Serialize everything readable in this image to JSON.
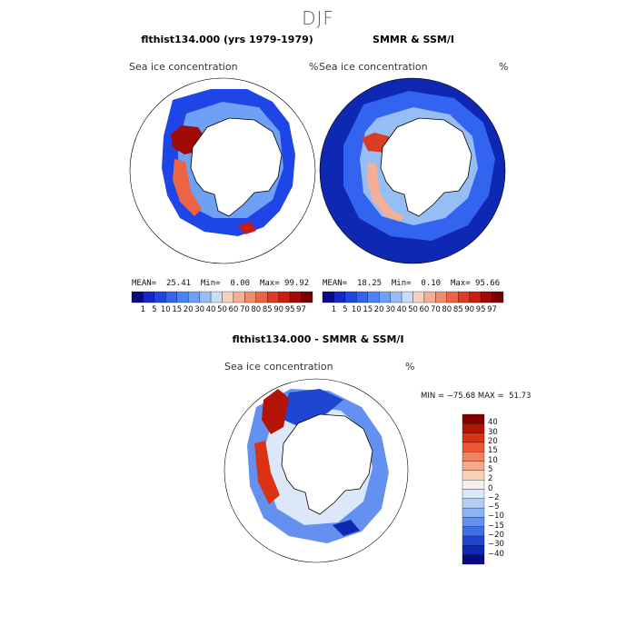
{
  "season": "DJF",
  "panels": {
    "left": {
      "title": "flthist134.000 (yrs 1979-1979)",
      "variable": "Sea ice concentration",
      "unit": "%",
      "mean_label": "MEAN=",
      "mean": "25.41",
      "min_label": "Min=",
      "min": "0.00",
      "max_label": "Max=",
      "max": "99.92"
    },
    "right": {
      "title": "SMMR & SSM/I",
      "variable": "Sea ice concentration",
      "unit": "%",
      "mean_label": "MEAN=",
      "mean": "18.25",
      "min_label": "Min=",
      "min": "0.10",
      "max_label": "Max=",
      "max": "95.66"
    },
    "diff": {
      "title": "flthist134.000 - SMMR & SSM/I",
      "variable": "Sea ice concentration",
      "unit": "%",
      "minmax_text": "MIN = −75.68 MAX =  51.73"
    }
  },
  "abs_colorbar": {
    "ticks": [
      "1",
      "5",
      "10",
      "15",
      "20",
      "30",
      "40",
      "50",
      "60",
      "70",
      "80",
      "85",
      "90",
      "95",
      "97"
    ],
    "colors": [
      "#0a0a82",
      "#1428c8",
      "#1e46e6",
      "#3264f0",
      "#4b82f5",
      "#6ea0f5",
      "#96bef5",
      "#c8dcf8",
      "#f5d2be",
      "#f5af96",
      "#f08c6e",
      "#eb6446",
      "#dc3c23",
      "#c81e0f",
      "#a00a05",
      "#780000"
    ]
  },
  "diff_colorbar": {
    "labels": [
      "40",
      "30",
      "20",
      "15",
      "10",
      "5",
      "2",
      "0",
      "−2",
      "−5",
      "−10",
      "−15",
      "−20",
      "−30",
      "−40"
    ],
    "colors": [
      "#820000",
      "#b41405",
      "#dc3214",
      "#eb5a32",
      "#f08264",
      "#f5aa8c",
      "#fad2b9",
      "#f5f0eb",
      "#dce8fa",
      "#b4cdf5",
      "#8cb4f5",
      "#6491f0",
      "#3c6ee6",
      "#1e46d2",
      "#0f28b4",
      "#0a0a82"
    ]
  },
  "colors": {
    "ice_high": "#c81e0f",
    "ice_low": "#1e46e6",
    "land": "#ffffff",
    "border": "#000000"
  }
}
